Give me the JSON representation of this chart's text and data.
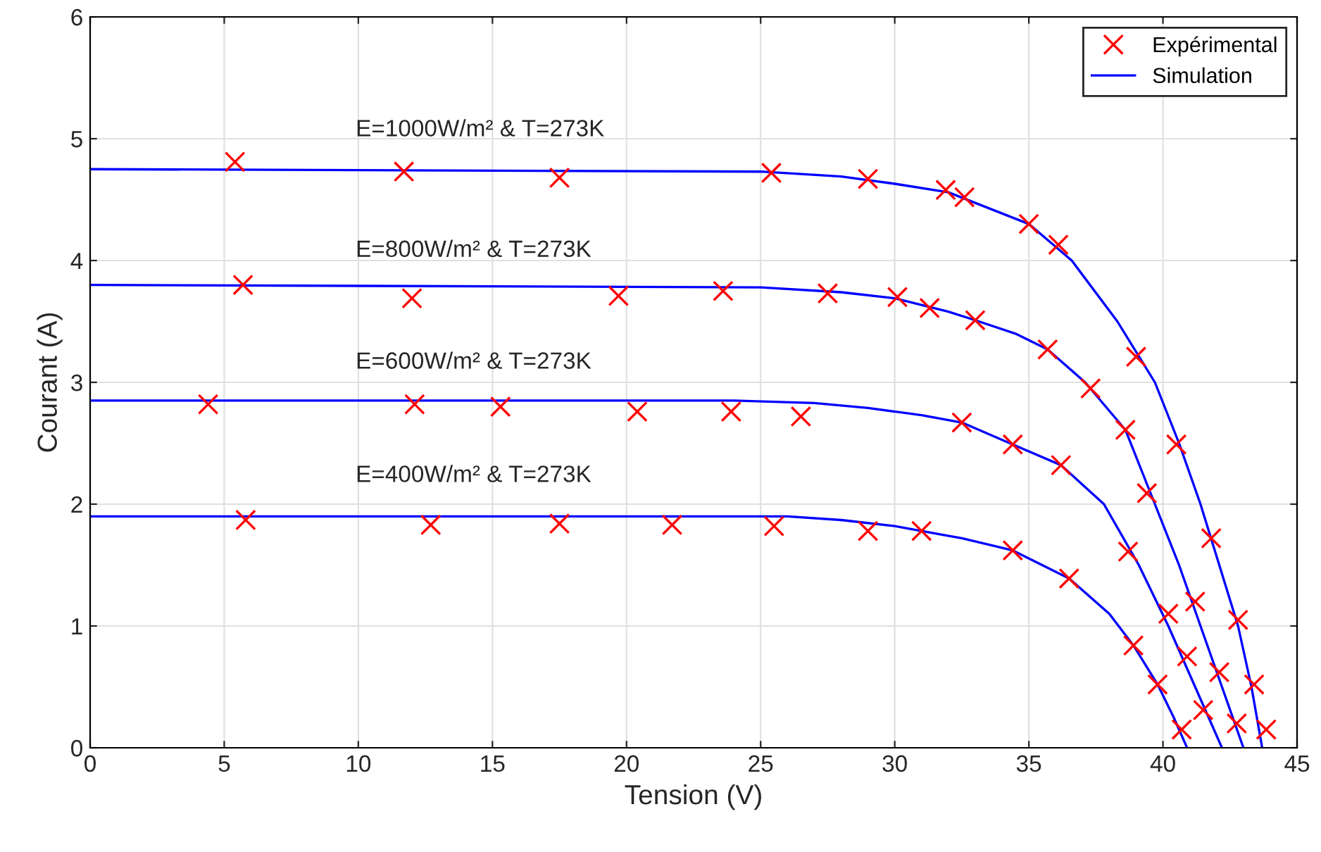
{
  "chart_data": {
    "type": "scatter",
    "xlabel": "Tension (V)",
    "ylabel": "Courant (A)",
    "xlim": [
      0,
      45
    ],
    "ylim": [
      0,
      6
    ],
    "xticks": [
      0,
      5,
      10,
      15,
      20,
      25,
      30,
      35,
      40,
      45
    ],
    "yticks": [
      0,
      1,
      2,
      3,
      4,
      5,
      6
    ],
    "grid": true,
    "legend": "top right",
    "series": [
      {
        "name": "Expérimental",
        "marker": "cross",
        "color": "#ff0000",
        "x": [
          5.4,
          11.7,
          17.5,
          25.4,
          29.0,
          31.9,
          32.6,
          35.0,
          36.1,
          39.0,
          40.5,
          41.8,
          42.8,
          43.4,
          43.85
        ],
        "values": [
          4.81,
          4.73,
          4.68,
          4.72,
          4.67,
          4.58,
          4.52,
          4.3,
          4.13,
          3.21,
          2.49,
          1.72,
          1.05,
          0.52,
          0.15
        ]
      },
      {
        "marker": "cross",
        "color": "#ff0000",
        "x": [
          5.7,
          12.0,
          19.7,
          23.6,
          27.5,
          30.1,
          31.3,
          33.0,
          35.7,
          37.3,
          38.6,
          39.4,
          41.2,
          42.1,
          42.75
        ],
        "values": [
          3.8,
          3.69,
          3.71,
          3.75,
          3.73,
          3.7,
          3.61,
          3.51,
          3.27,
          2.95,
          2.61,
          2.09,
          1.2,
          0.62,
          0.2
        ]
      },
      {
        "marker": "cross",
        "color": "#ff0000",
        "x": [
          4.4,
          12.1,
          15.3,
          20.4,
          23.9,
          26.5,
          32.5,
          34.4,
          36.2,
          38.7,
          40.2,
          40.9,
          41.5
        ],
        "values": [
          2.82,
          2.82,
          2.8,
          2.76,
          2.76,
          2.72,
          2.67,
          2.49,
          2.32,
          1.61,
          1.1,
          0.75,
          0.31
        ]
      },
      {
        "marker": "cross",
        "color": "#ff0000",
        "x": [
          5.8,
          12.7,
          17.5,
          21.7,
          25.5,
          29.0,
          31.0,
          34.4,
          36.5,
          38.9,
          39.8,
          40.7
        ],
        "values": [
          1.87,
          1.83,
          1.84,
          1.83,
          1.82,
          1.78,
          1.78,
          1.62,
          1.39,
          0.84,
          0.52,
          0.15
        ]
      },
      {
        "name": "Simulation",
        "type": "line",
        "marker": "none",
        "line_style": "solid",
        "color": "#0000ff",
        "x": [
          0,
          25,
          28,
          30,
          32,
          35,
          36.6,
          38.3,
          39.7,
          40.6,
          41.4,
          42.1,
          42.8,
          43.3,
          43.7
        ],
        "values": [
          4.75,
          4.73,
          4.69,
          4.63,
          4.56,
          4.3,
          4.0,
          3.5,
          3.0,
          2.5,
          2.0,
          1.5,
          1.0,
          0.5,
          0
        ]
      },
      {
        "type": "line",
        "marker": "none",
        "line_style": "solid",
        "color": "#0000ff",
        "x": [
          0,
          25,
          28,
          30,
          32,
          33,
          34.5,
          35.7,
          37.1,
          38.6,
          39.7,
          40.6,
          41.4,
          42.2,
          43.0
        ],
        "values": [
          3.8,
          3.78,
          3.74,
          3.69,
          3.58,
          3.51,
          3.4,
          3.27,
          3.0,
          2.61,
          2.0,
          1.5,
          1.0,
          0.5,
          0
        ]
      },
      {
        "type": "line",
        "marker": "none",
        "line_style": "solid",
        "color": "#0000ff",
        "x": [
          0,
          24,
          27,
          29,
          31,
          32.5,
          34.4,
          36.2,
          37.8,
          39.1,
          40.2,
          41.2,
          42.2
        ],
        "values": [
          2.85,
          2.85,
          2.83,
          2.79,
          2.73,
          2.67,
          2.49,
          2.32,
          2.0,
          1.5,
          1.0,
          0.5,
          0
        ]
      },
      {
        "type": "line",
        "marker": "none",
        "line_style": "solid",
        "color": "#0000ff",
        "x": [
          0,
          26,
          28,
          30,
          31,
          32.5,
          34.4,
          36.5,
          38,
          38.9,
          39.8,
          40.4,
          40.9
        ],
        "values": [
          1.9,
          1.9,
          1.87,
          1.82,
          1.78,
          1.72,
          1.62,
          1.39,
          1.1,
          0.84,
          0.52,
          0.25,
          0
        ]
      }
    ],
    "annotations": [
      "E=1000W/m² & T=273K",
      "E=800W/m² & T=273K",
      "E=600W/m² & T=273K",
      "E=400W/m² & T=273K"
    ]
  }
}
